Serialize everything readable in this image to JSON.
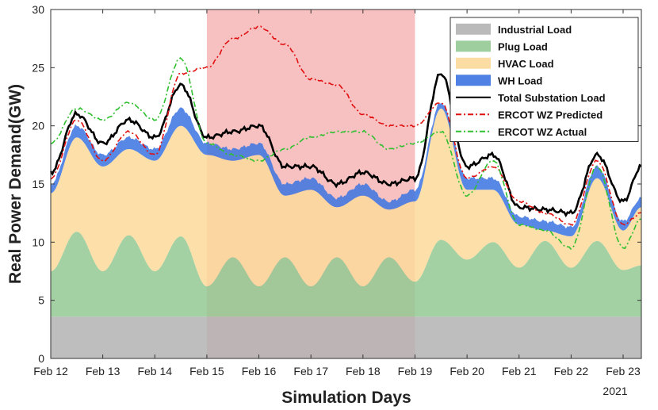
{
  "chart_data": {
    "type": "area",
    "ylabel": "Real Power Demand(GW)",
    "xlabel": "Simulation Days",
    "year_label": "2021",
    "ylim": [
      0,
      30
    ],
    "xlim": [
      12,
      23.35
    ],
    "yticks": [
      0,
      5,
      10,
      15,
      20,
      25,
      30
    ],
    "xticks": [
      {
        "day": 12,
        "label": "Feb 12"
      },
      {
        "day": 13,
        "label": "Feb 13"
      },
      {
        "day": 14,
        "label": "Feb 14"
      },
      {
        "day": 15,
        "label": "Feb 15"
      },
      {
        "day": 16,
        "label": "Feb 16"
      },
      {
        "day": 17,
        "label": "Feb 17"
      },
      {
        "day": 18,
        "label": "Feb 18"
      },
      {
        "day": 19,
        "label": "Feb 19"
      },
      {
        "day": 20,
        "label": "Feb 20"
      },
      {
        "day": 21,
        "label": "Feb 21"
      },
      {
        "day": 22,
        "label": "Feb 22"
      },
      {
        "day": 23,
        "label": "Feb 23"
      }
    ],
    "shaded_region": {
      "start": 15,
      "end": 19,
      "color": "#f5a0a0"
    },
    "legend_position": "top-right",
    "x": [
      12.0,
      12.5,
      13.0,
      13.5,
      14.0,
      14.5,
      15.0,
      15.5,
      16.0,
      16.5,
      17.0,
      17.5,
      18.0,
      18.5,
      19.0,
      19.5,
      20.0,
      20.5,
      21.0,
      21.5,
      22.0,
      22.5,
      23.0,
      23.35
    ],
    "series": [
      {
        "name": "Industrial Load",
        "kind": "area",
        "color": "#b3b3b3",
        "values": [
          3.6,
          3.6,
          3.6,
          3.6,
          3.6,
          3.6,
          3.6,
          3.6,
          3.6,
          3.6,
          3.6,
          3.6,
          3.6,
          3.6,
          3.6,
          3.6,
          3.6,
          3.6,
          3.6,
          3.6,
          3.6,
          3.6,
          3.6,
          3.6
        ]
      },
      {
        "name": "Plug Load",
        "kind": "area",
        "color": "#93c993",
        "values": [
          7.5,
          10.9,
          7.5,
          10.6,
          7.5,
          10.5,
          6.2,
          8.7,
          6.2,
          8.7,
          6.2,
          8.7,
          6.2,
          8.7,
          6.6,
          10.2,
          8.5,
          10.0,
          7.8,
          10.1,
          7.8,
          10.1,
          7.6,
          8.0
        ]
      },
      {
        "name": "HVAC Load",
        "kind": "area",
        "color": "#fbd99a",
        "values": [
          14.2,
          19.0,
          16.5,
          18.0,
          17.0,
          20.0,
          17.5,
          17.0,
          17.5,
          14.0,
          14.5,
          13.0,
          14.0,
          12.8,
          13.5,
          21.5,
          14.5,
          14.5,
          11.5,
          11.0,
          10.5,
          15.5,
          11.0,
          13.0
        ]
      },
      {
        "name": "WH Load",
        "kind": "area",
        "color": "#3b73e0",
        "values": [
          15.0,
          20.0,
          17.5,
          19.0,
          18.0,
          21.5,
          18.5,
          18.0,
          18.5,
          15.0,
          15.5,
          13.8,
          15.0,
          13.5,
          14.5,
          22.0,
          15.5,
          15.5,
          12.2,
          11.8,
          11.3,
          16.5,
          11.8,
          13.8
        ]
      },
      {
        "name": "Total Substation Load",
        "kind": "line",
        "color": "#000000",
        "dash": "",
        "values": [
          16.0,
          21.0,
          18.5,
          20.5,
          19.0,
          23.5,
          19.0,
          19.5,
          20.0,
          16.5,
          16.5,
          15.0,
          16.0,
          15.0,
          15.5,
          24.5,
          16.5,
          17.5,
          13.0,
          12.8,
          12.5,
          17.5,
          13.5,
          16.5
        ]
      },
      {
        "name": "ERCOT WZ Predicted",
        "kind": "line",
        "color": "#e01010",
        "dash": "7,3,2,3",
        "values": [
          15.5,
          20.5,
          17.0,
          19.5,
          17.5,
          24.5,
          25.0,
          27.5,
          28.5,
          27.0,
          24.0,
          23.5,
          21.0,
          20.0,
          20.0,
          22.0,
          15.5,
          16.5,
          13.5,
          12.5,
          11.5,
          17.0,
          11.5,
          12.5
        ]
      },
      {
        "name": "ERCOT WZ Actual",
        "kind": "line",
        "color": "#30c030",
        "dash": "7,3,2,3",
        "values": [
          18.5,
          21.5,
          20.5,
          22.0,
          20.5,
          25.8,
          18.5,
          17.5,
          17.0,
          18.0,
          19.0,
          19.5,
          19.5,
          18.0,
          18.5,
          19.5,
          14.0,
          17.0,
          11.5,
          11.0,
          9.5,
          16.5,
          9.5,
          12.0
        ]
      }
    ]
  }
}
